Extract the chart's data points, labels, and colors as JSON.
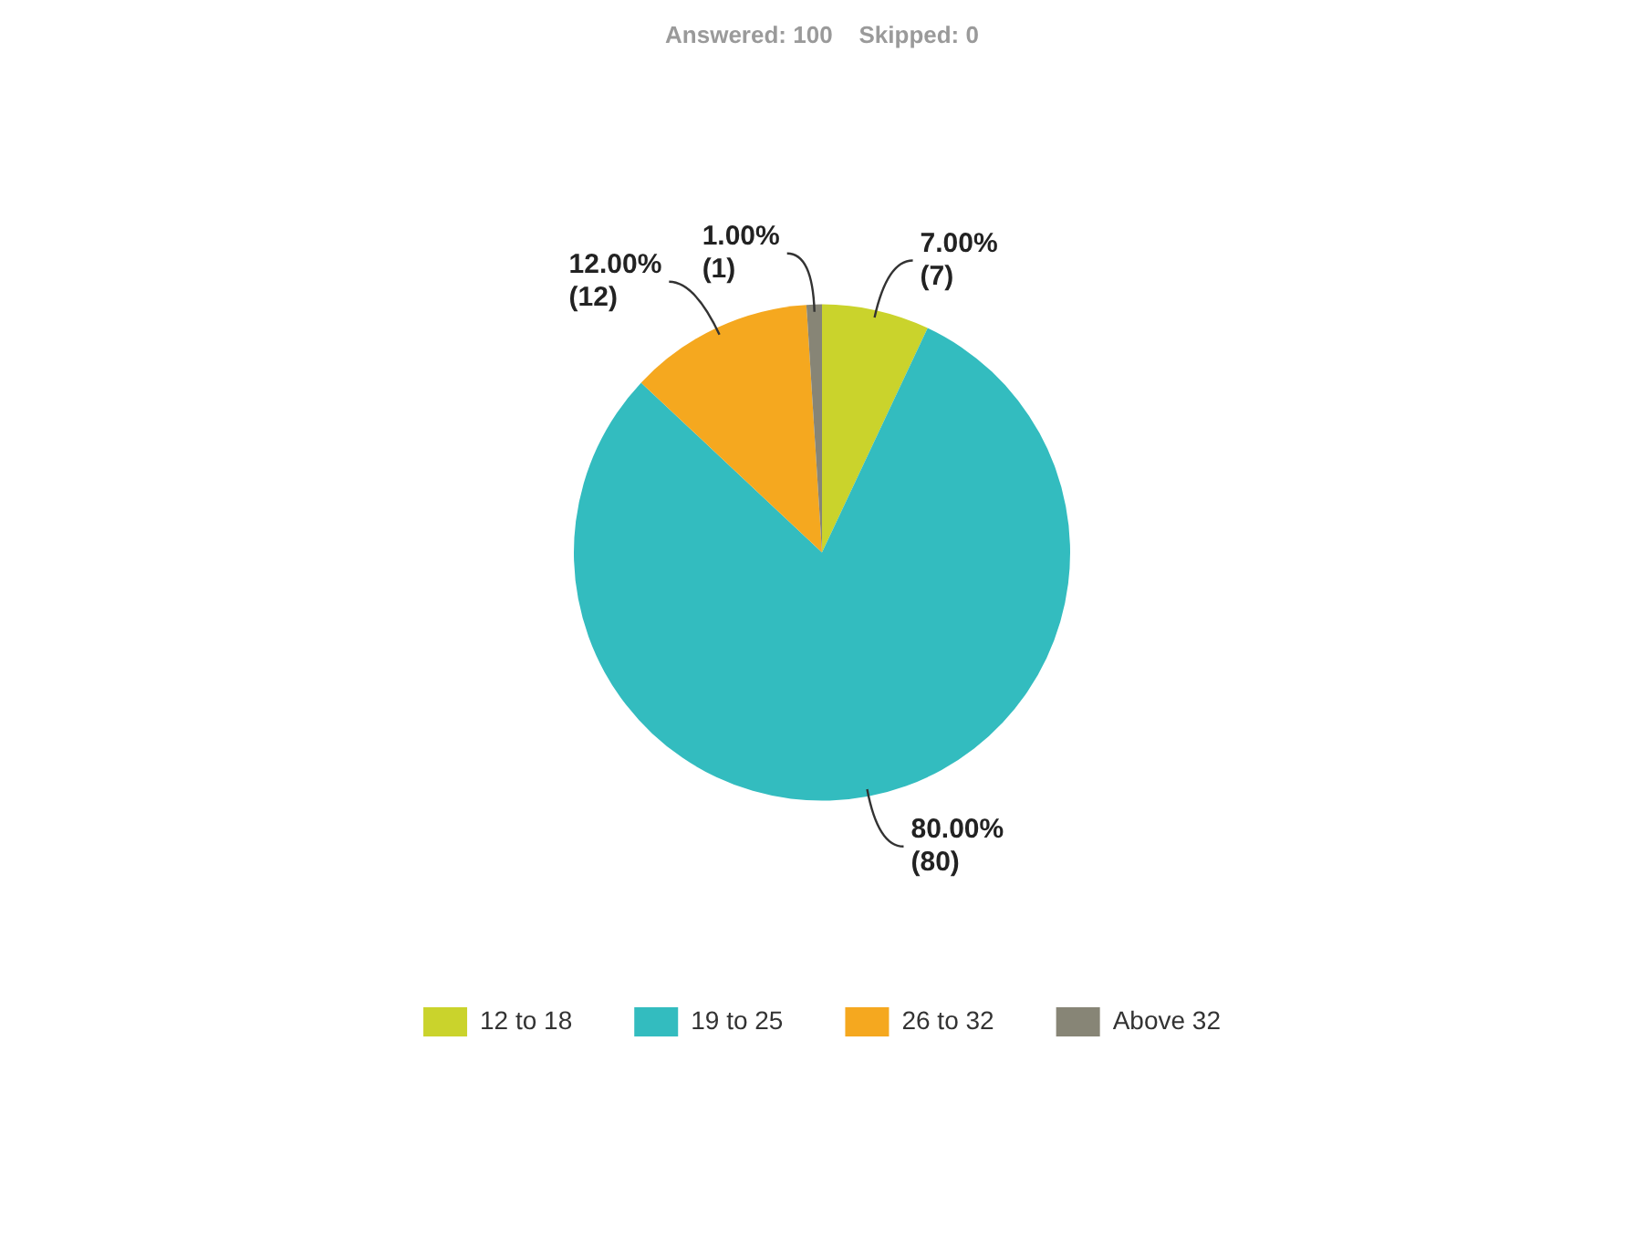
{
  "chart_data": {
    "type": "pie",
    "subtitle": "Answered: 100    Skipped: 0",
    "categories": [
      "12 to 18",
      "19 to 25",
      "26 to 32",
      "Above 32"
    ],
    "values": [
      7,
      80,
      12,
      1
    ],
    "colors": [
      "#cad32c",
      "#33bcbf",
      "#f5a81f",
      "#878576"
    ],
    "value_labels": [
      "7.00%\n(7)",
      "80.00%\n(80)",
      "12.00%\n(12)",
      "1.00%\n(1)"
    ],
    "legend": "bottom"
  }
}
